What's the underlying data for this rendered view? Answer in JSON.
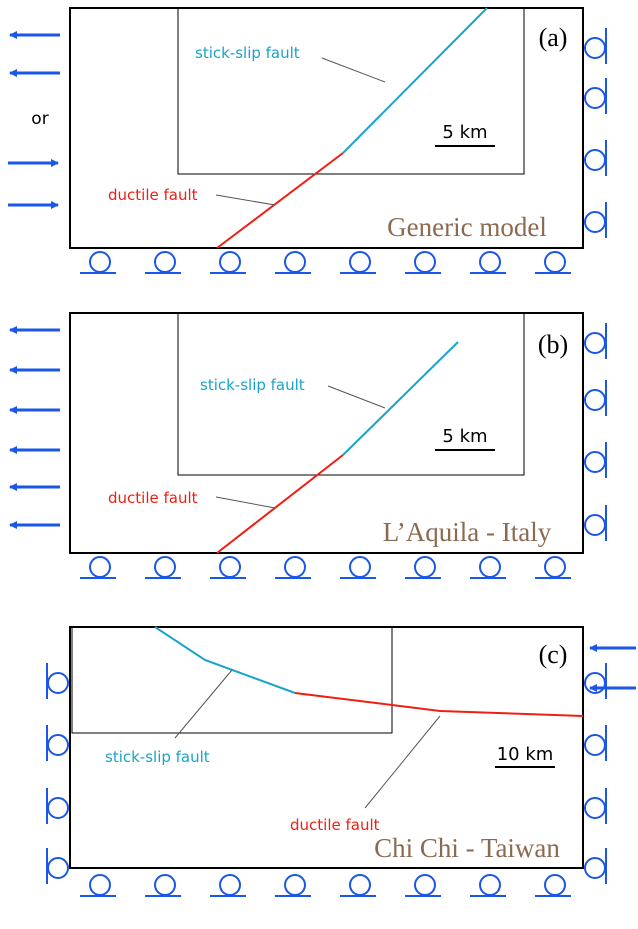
{
  "or_label": "or",
  "panels": [
    {
      "label": "(a)",
      "title": "Generic model",
      "stick_slip_label": "stick-slip fault",
      "ductile_label": "ductile fault",
      "scale_label": "5 km"
    },
    {
      "label": "(b)",
      "title": "L’Aquila - Italy",
      "stick_slip_label": "stick-slip fault",
      "ductile_label": "ductile fault",
      "scale_label": "5 km"
    },
    {
      "label": "(c)",
      "title": "Chi Chi - Taiwan",
      "stick_slip_label": "stick-slip fault",
      "ductile_label": "ductile fault",
      "scale_label": "10 km"
    }
  ]
}
